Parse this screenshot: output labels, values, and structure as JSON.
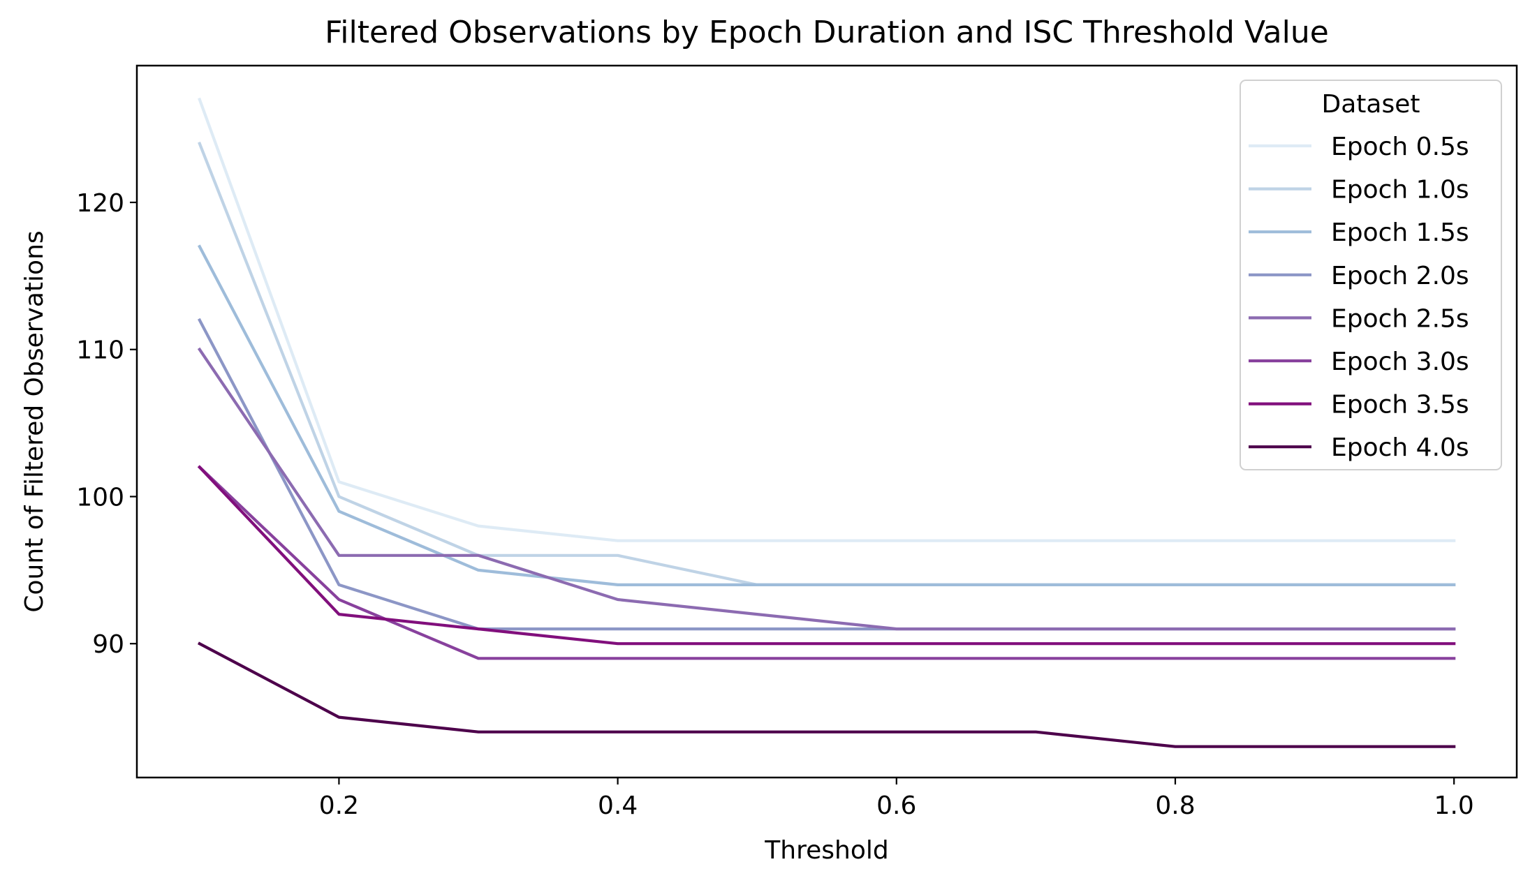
{
  "chart_data": {
    "type": "line",
    "title": "Filtered Observations by Epoch Duration and ISC Threshold Value",
    "xlabel": "Threshold",
    "ylabel": "Count of Filtered Observations",
    "xlim": [
      0.055,
      1.045
    ],
    "ylim": [
      80.9,
      129.3
    ],
    "x": [
      0.1,
      0.2,
      0.3,
      0.4,
      0.5,
      0.6,
      0.7,
      0.8,
      0.9,
      1.0
    ],
    "x_ticks": [
      0.2,
      0.4,
      0.6,
      0.8,
      1.0
    ],
    "x_tick_labels": [
      "0.2",
      "0.4",
      "0.6",
      "0.8",
      "1.0"
    ],
    "y_ticks": [
      90,
      100,
      110,
      120
    ],
    "y_tick_labels": [
      "90",
      "100",
      "110",
      "120"
    ],
    "grid": false,
    "legend": {
      "title": "Dataset",
      "placement": "top-right"
    },
    "series": [
      {
        "name": "Epoch 0.5s",
        "color": "#deebf5",
        "values": [
          127,
          101,
          98,
          97,
          97,
          97,
          97,
          97,
          97,
          97
        ]
      },
      {
        "name": "Epoch 1.0s",
        "color": "#bfd3e6",
        "values": [
          124,
          100,
          96,
          96,
          94,
          94,
          94,
          94,
          94,
          94
        ]
      },
      {
        "name": "Epoch 1.5s",
        "color": "#9ebcda",
        "values": [
          117,
          99,
          95,
          94,
          94,
          94,
          94,
          94,
          94,
          94
        ]
      },
      {
        "name": "Epoch 2.0s",
        "color": "#8c96c6",
        "values": [
          112,
          94,
          91,
          91,
          91,
          91,
          91,
          91,
          91,
          91
        ]
      },
      {
        "name": "Epoch 2.5s",
        "color": "#8c6bb1",
        "values": [
          110,
          96,
          96,
          93,
          92,
          91,
          91,
          91,
          91,
          91
        ]
      },
      {
        "name": "Epoch 3.0s",
        "color": "#88419d",
        "values": [
          102,
          93,
          89,
          89,
          89,
          89,
          89,
          89,
          89,
          89
        ]
      },
      {
        "name": "Epoch 3.5s",
        "color": "#810f7c",
        "values": [
          102,
          92,
          91,
          90,
          90,
          90,
          90,
          90,
          90,
          90
        ]
      },
      {
        "name": "Epoch 4.0s",
        "color": "#4d004b",
        "values": [
          90,
          85,
          84,
          84,
          84,
          84,
          84,
          83,
          83,
          83
        ]
      }
    ]
  }
}
